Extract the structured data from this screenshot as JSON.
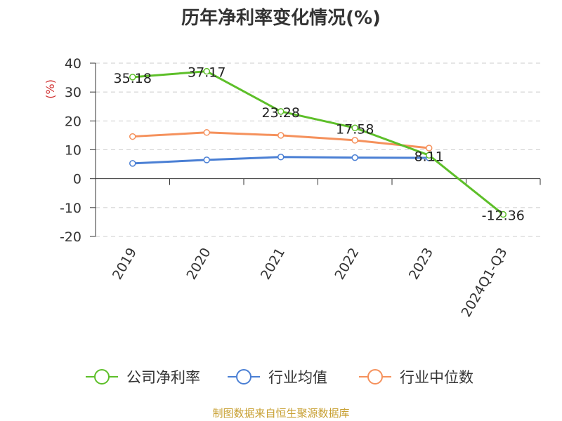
{
  "chart_data": {
    "type": "line",
    "title": "历年净利率变化情况(%)",
    "ylabel": "(%)",
    "categories": [
      "2019",
      "2020",
      "2021",
      "2022",
      "2023",
      "2024Q1-Q3"
    ],
    "ylim": [
      -20,
      40
    ],
    "yticks": [
      "40",
      "30",
      "20",
      "10",
      "0",
      "-10",
      "-20"
    ],
    "grid": true,
    "legend_position": "bottom",
    "series": [
      {
        "name": "公司净利率",
        "color": "#5dbf29",
        "values": [
          35.18,
          37.17,
          23.28,
          17.58,
          8.11,
          -12.36
        ],
        "labels": [
          "35.18",
          "37.17",
          "23.28",
          "17.58",
          "8.11",
          "-12.36"
        ]
      },
      {
        "name": "行业均值",
        "color": "#4a7fd4",
        "values": [
          5.3,
          6.5,
          7.5,
          7.3,
          7.2,
          null
        ]
      },
      {
        "name": "行业中位数",
        "color": "#f5915c",
        "values": [
          14.6,
          16.0,
          15.0,
          13.3,
          10.6,
          null
        ]
      }
    ]
  },
  "source": "制图数据来自恒生聚源数据库",
  "colors": {
    "source_text": "#c8a032",
    "ylabel_text": "#d03030",
    "grid": "#cccccc"
  }
}
